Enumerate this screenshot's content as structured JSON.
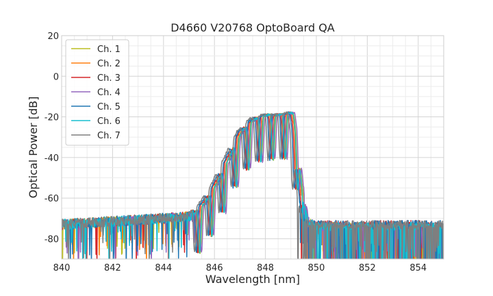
{
  "chart_data": {
    "type": "line",
    "title": "D4660 V20768 OptoBoard QA",
    "xlabel": "Wavelength [nm]",
    "ylabel": "Optical Power [dB]",
    "xlim": [
      840,
      855
    ],
    "ylim": [
      -90,
      20
    ],
    "xticks": [
      840,
      842,
      844,
      846,
      848,
      850,
      852,
      854
    ],
    "yticks": [
      -80,
      -60,
      -40,
      -20,
      0,
      20
    ],
    "x_minor_step": 0.5,
    "y_minor_step": 5,
    "grid": true,
    "legend_position": "upper-left",
    "series": [
      {
        "name": "Ch. 1",
        "color": "#bcbd22",
        "shift": 0.1,
        "noise_floor": -74
      },
      {
        "name": "Ch. 2",
        "color": "#ff7f0e",
        "shift": 0.05,
        "noise_floor": -74
      },
      {
        "name": "Ch. 3",
        "color": "#d62728",
        "shift": 0.0,
        "noise_floor": -73
      },
      {
        "name": "Ch. 4",
        "color": "#9467bd",
        "shift": 0.15,
        "noise_floor": -74
      },
      {
        "name": "Ch. 5",
        "color": "#1f77b4",
        "shift": -0.05,
        "noise_floor": -73
      },
      {
        "name": "Ch. 6",
        "color": "#17becf",
        "shift": 0.08,
        "noise_floor": -74
      },
      {
        "name": "Ch. 7",
        "color": "#7f7f7f",
        "shift": -0.12,
        "noise_floor": -73
      }
    ],
    "envelope": {
      "x": [
        840.0,
        844.0,
        845.0,
        845.5,
        846.0,
        846.5,
        847.0,
        847.5,
        848.0,
        848.5,
        849.0,
        849.2,
        849.4,
        849.6,
        850.0,
        855.0
      ],
      "y": [
        -73,
        -70,
        -69,
        -63,
        -53,
        -40,
        -27,
        -21,
        -19,
        -19,
        -18,
        -35,
        -62,
        -72,
        -74,
        -76
      ]
    },
    "fringe_period_nm": 0.48
  }
}
